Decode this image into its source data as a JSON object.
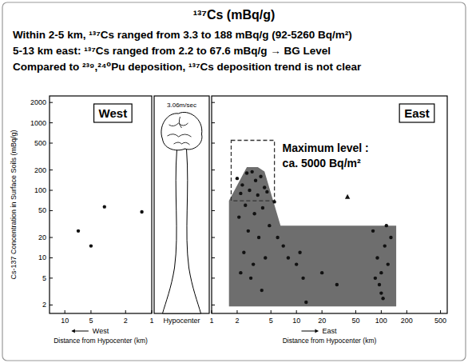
{
  "header": {
    "title": "¹³⁷Cs (mBq/g)",
    "notes": [
      "Within 2-5 km, ¹³⁷Cs ranged from 3.3 to 188 mBq/g (92-5260 Bq/m²)",
      "5-13 km east: ¹³⁷Cs ranged from 2.2 to 67.6 mBq/g → BG Level",
      "Compared to ²³⁹,²⁴⁰Pu deposition, ¹³⁷Cs deposition trend is not clear"
    ]
  },
  "chart_data": [
    {
      "type": "scatter",
      "title": "West",
      "x_direction": "West",
      "xlabel": "Distance from Hypocenter (km)",
      "ylabel": "Cs-137 Concentration in Surface Soils (mBq/g)",
      "log": true,
      "xlim": [
        15,
        1
      ],
      "xticks": [
        10,
        5,
        2,
        1
      ],
      "ylim": [
        1.5,
        2500
      ],
      "yticks": [
        2,
        5,
        10,
        20,
        50,
        100,
        200,
        500,
        1000,
        2000
      ],
      "series": [
        {
          "marker": "circle",
          "color": "#111111",
          "x": [
            7,
            5,
            3.5,
            1.3
          ],
          "values": [
            25,
            15,
            57,
            48
          ]
        }
      ]
    },
    {
      "type": "scatter",
      "title": "East",
      "x_direction": "East",
      "xlabel": "Distance from Hypocenter (km)",
      "log": true,
      "tick_labels": "x",
      "xlim": [
        1,
        600
      ],
      "xticks": [
        1,
        2,
        5,
        10,
        20,
        50,
        100,
        200,
        500
      ],
      "ylim": [
        1.5,
        2500
      ],
      "yticks": [
        2,
        5,
        10,
        20,
        50,
        100,
        200,
        500,
        1000,
        2000
      ],
      "shaded_region": {
        "color": "#6e6e6e",
        "x": [
          1.6,
          1.6,
          2.6,
          3.5,
          4.2,
          6.5,
          150,
          150
        ],
        "y": [
          1.9,
          70,
          220,
          220,
          190,
          30,
          30,
          1.9
        ]
      },
      "highlight_box": {
        "x": [
          1.7,
          5.5
        ],
        "y": [
          70,
          550
        ]
      },
      "annotations": [
        "Maximum level :",
        "ca. 5000 Bq/m²"
      ],
      "series": [
        {
          "marker": "circle",
          "color": "#111111",
          "x": [
            2.0,
            2.3,
            2.6,
            3.0,
            3.3,
            3.8,
            4.2,
            2.2,
            2.8,
            3.5,
            4.5,
            2.5,
            3.2,
            4.0,
            2.1,
            2.7,
            3.6,
            4.8,
            2.4,
            3.1,
            4.3,
            2.9,
            3.9,
            2.2,
            5.5,
            6,
            7,
            8,
            10,
            11,
            12,
            13,
            20,
            30,
            80,
            85,
            90,
            95,
            100,
            100,
            105,
            110,
            115,
            120,
            130
          ],
          "values": [
            150,
            120,
            180,
            188,
            140,
            160,
            110,
            90,
            100,
            85,
            95,
            60,
            45,
            55,
            40,
            25,
            20,
            30,
            12,
            8,
            10,
            5,
            3.3,
            6,
            67.6,
            20,
            15,
            10,
            8,
            12,
            5,
            2.2,
            6,
            4,
            25,
            5,
            10,
            4,
            6,
            3,
            2.5,
            15,
            30,
            8,
            20
          ]
        },
        {
          "marker": "triangle",
          "color": "#111111",
          "x": [
            40
          ],
          "values": [
            80
          ]
        }
      ]
    }
  ],
  "center_panel": {
    "annotation": "3.06m/sec",
    "label": "Hypocenter"
  }
}
